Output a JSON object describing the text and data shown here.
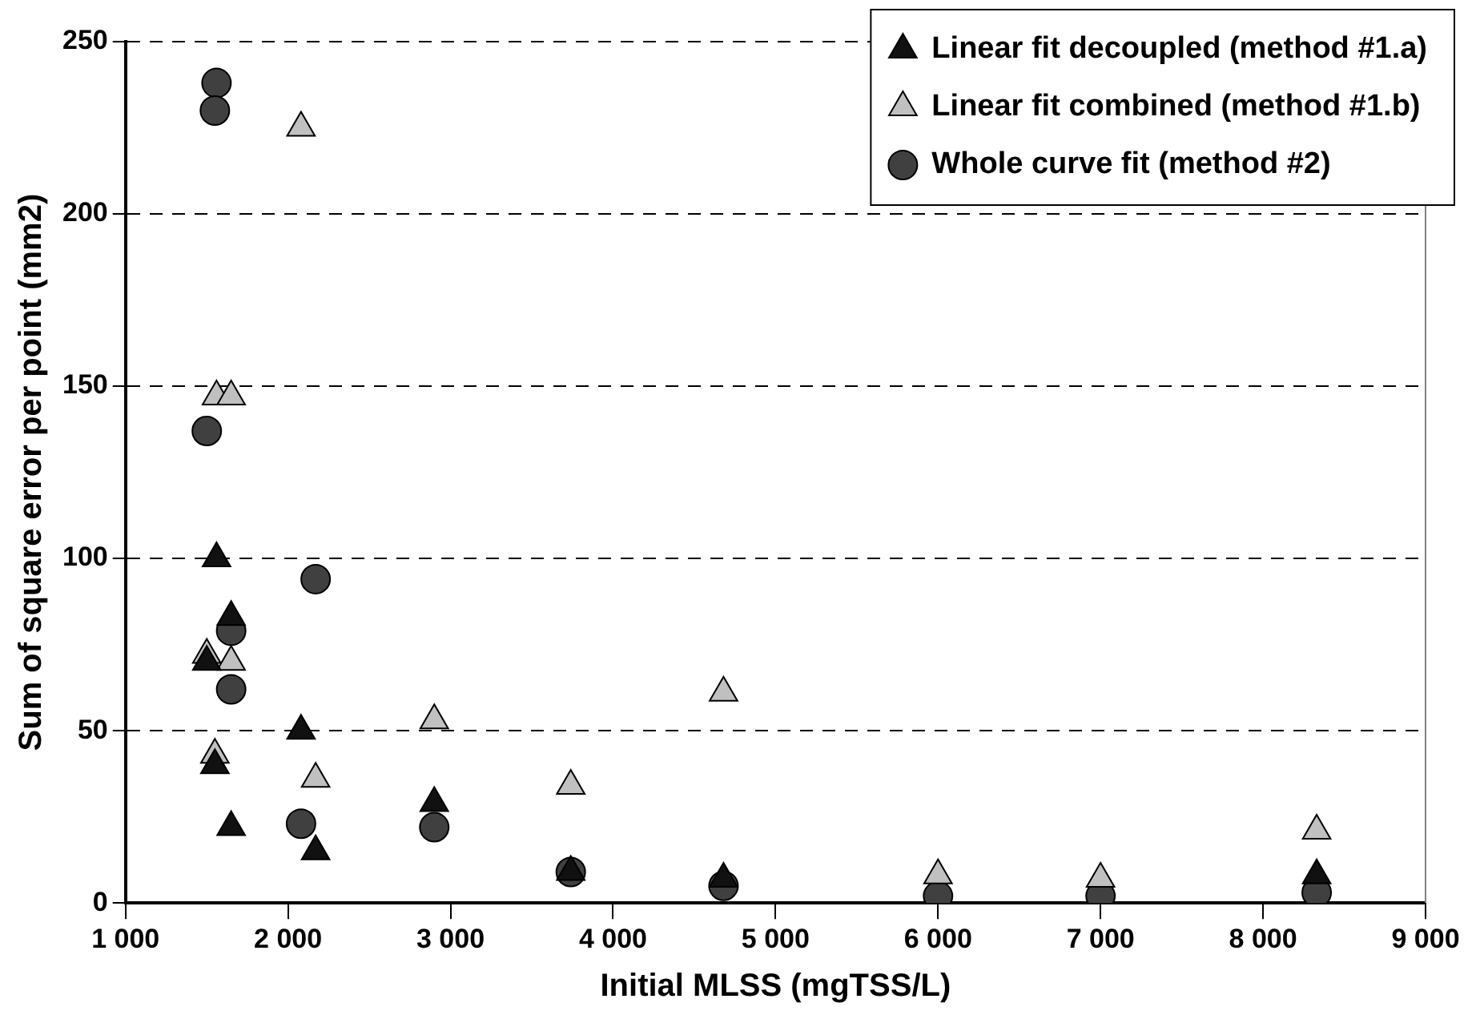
{
  "chart_data": {
    "type": "scatter",
    "xlabel": "Initial MLSS (mgTSS/L)",
    "ylabel": "Sum of square error per point (mm2)",
    "xlim": [
      1000,
      9000
    ],
    "xticks": [
      {
        "value": 1000,
        "label": "1 000"
      },
      {
        "value": 2000,
        "label": "2 000"
      },
      {
        "value": 3000,
        "label": "3 000"
      },
      {
        "value": 4000,
        "label": "4 000"
      },
      {
        "value": 5000,
        "label": "5 000"
      },
      {
        "value": 6000,
        "label": "6 000"
      },
      {
        "value": 7000,
        "label": "7 000"
      },
      {
        "value": 8000,
        "label": "8 000"
      },
      {
        "value": 9000,
        "label": "9 000"
      }
    ],
    "ylim": [
      0,
      250
    ],
    "yticks": [
      0,
      50,
      100,
      150,
      200,
      250
    ],
    "grid": "y",
    "legend": "top right",
    "series": [
      {
        "name": "Linear fit decoupled (method #1.a)",
        "color": "#111111",
        "marker": "triangle",
        "x": [
          1500,
          1550,
          1560,
          1650,
          1650,
          2080,
          2170,
          2900,
          3740,
          4680,
          8330
        ],
        "values": [
          70,
          40,
          100,
          83,
          22,
          50,
          15,
          29,
          9,
          7,
          8
        ]
      },
      {
        "name": "Linear fit combined (method #1.b)",
        "color": "#c0c0c0",
        "marker": "triangle",
        "x": [
          2080,
          1560,
          1650,
          1500,
          1650,
          1550,
          2170,
          2900,
          3740,
          4680,
          6000,
          7000,
          8330
        ],
        "values": [
          225,
          147,
          147,
          72,
          70,
          43,
          36,
          53,
          34,
          61,
          8,
          7,
          21
        ]
      },
      {
        "name": "Whole curve fit (method #2)",
        "color": "#404040",
        "marker": "circle",
        "x": [
          1560,
          1550,
          1500,
          2170,
          1650,
          1650,
          2080,
          2900,
          3740,
          4680,
          6000,
          7000,
          8330
        ],
        "values": [
          238,
          230,
          137,
          94,
          79,
          62,
          23,
          22,
          9,
          5,
          2,
          2,
          3
        ]
      }
    ]
  }
}
